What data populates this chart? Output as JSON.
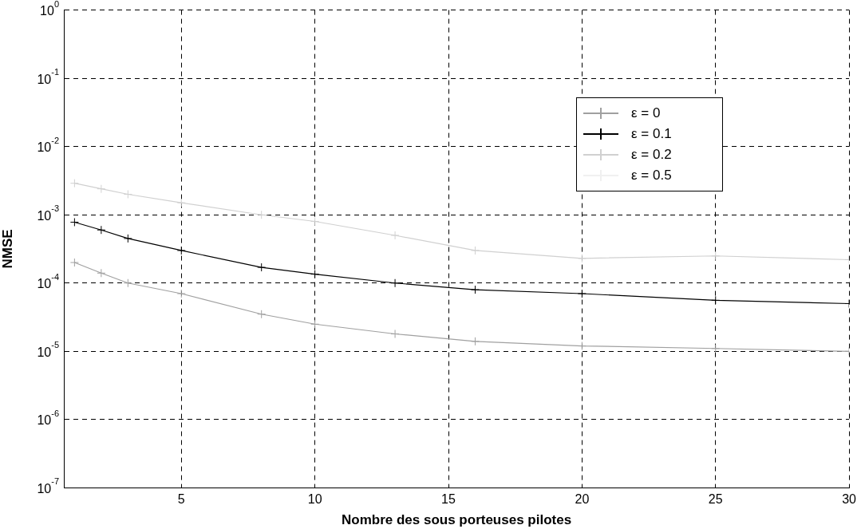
{
  "chart_data": {
    "type": "line",
    "xlabel": "Nombre des sous porteuses pilotes",
    "ylabel": "NMSE",
    "x": [
      1,
      2,
      3,
      5,
      8,
      10,
      13,
      16,
      20,
      25,
      30
    ],
    "series": [
      {
        "name": "ε = 0",
        "color": "#a0a0a0",
        "values": [
          0.0002,
          0.00014,
          0.0001,
          7e-05,
          3.5e-05,
          2.5e-05,
          1.8e-05,
          1.4e-05,
          1.2e-05,
          1.1e-05,
          1e-05
        ]
      },
      {
        "name": "ε = 0.1",
        "color": "#000000",
        "values": [
          0.00078,
          0.0006,
          0.00045,
          0.0003,
          0.00017,
          0.000135,
          0.0001,
          8e-05,
          7e-05,
          5.6e-05,
          5e-05
        ]
      },
      {
        "name": "ε = 0.2",
        "color": "#d0d0d0",
        "values": [
          0.0029,
          0.0024,
          0.002,
          0.0015,
          0.001,
          0.0008,
          0.0005,
          0.0003,
          0.00023,
          0.00025,
          0.00022
        ]
      },
      {
        "name": "ε = 0.5",
        "color": "#f0f0f0",
        "values": [
          null,
          null,
          null,
          null,
          null,
          null,
          null,
          null,
          null,
          null,
          null
        ]
      }
    ],
    "xlim": [
      0.6,
      30
    ],
    "xticks": [
      5,
      10,
      15,
      20,
      25,
      30
    ],
    "ylim": [
      1e-07,
      1
    ],
    "log": "y",
    "yticks": [
      {
        "value": 1e-07,
        "label": "10$^{-7}$"
      },
      {
        "value": 1e-06,
        "label": "10$^{-6}$"
      },
      {
        "value": 1e-05,
        "label": "10$^{-5}$"
      },
      {
        "value": 0.0001,
        "label": "10$^{-4}$"
      },
      {
        "value": 0.001,
        "label": "10$^{-3}$"
      },
      {
        "value": 0.01,
        "label": "10$^{-2}$"
      },
      {
        "value": 0.1,
        "label": "10$^{-1}$"
      },
      {
        "value": 1,
        "label": "10$^{0}$"
      }
    ],
    "grid": true,
    "legend": "top right",
    "marker": "cross",
    "line_style": "solid"
  }
}
